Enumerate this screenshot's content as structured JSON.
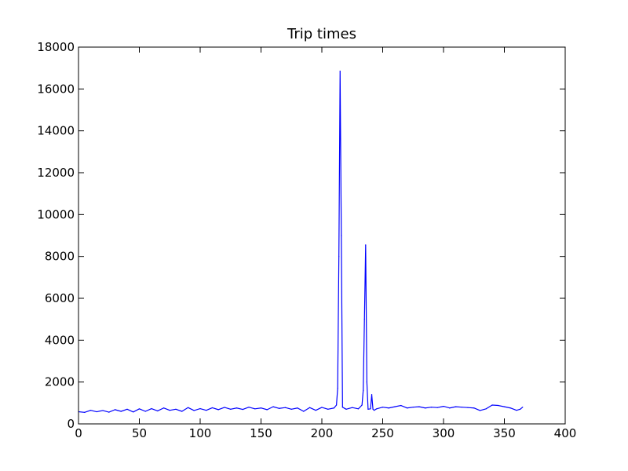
{
  "chart_data": {
    "type": "line",
    "title": "Trip times",
    "xlabel": "",
    "ylabel": "",
    "xlim": [
      0,
      400
    ],
    "ylim": [
      0,
      18000
    ],
    "x_ticks": [
      0,
      50,
      100,
      150,
      200,
      250,
      300,
      350,
      400
    ],
    "y_ticks": [
      0,
      2000,
      4000,
      6000,
      8000,
      10000,
      12000,
      14000,
      16000,
      18000
    ],
    "x_tick_labels": [
      "0",
      "50",
      "100",
      "150",
      "200",
      "250",
      "300",
      "350",
      "400"
    ],
    "y_tick_labels": [
      "0",
      "2000",
      "4000",
      "6000",
      "8000",
      "10000",
      "12000",
      "14000",
      "16000",
      "18000"
    ],
    "grid": false,
    "line_color": "#0000ff",
    "series": [
      {
        "x": [
          0,
          5,
          10,
          15,
          20,
          25,
          30,
          35,
          40,
          45,
          50,
          55,
          60,
          65,
          70,
          75,
          80,
          85,
          90,
          95,
          100,
          105,
          110,
          115,
          120,
          125,
          130,
          135,
          140,
          145,
          150,
          155,
          160,
          165,
          170,
          175,
          180,
          185,
          190,
          195,
          200,
          205,
          210,
          212,
          213,
          214,
          215,
          216,
          217,
          220,
          225,
          230,
          233,
          234,
          235,
          236,
          237,
          238,
          240,
          241,
          242,
          243,
          245,
          250,
          255,
          260,
          265,
          270,
          275,
          280,
          285,
          290,
          295,
          300,
          305,
          310,
          315,
          320,
          325,
          330,
          335,
          340,
          345,
          350,
          355,
          360,
          363,
          365
        ],
        "y": [
          580,
          550,
          650,
          580,
          640,
          560,
          680,
          600,
          700,
          570,
          720,
          600,
          730,
          620,
          760,
          650,
          700,
          600,
          780,
          640,
          730,
          650,
          770,
          680,
          790,
          700,
          760,
          690,
          800,
          720,
          760,
          680,
          820,
          740,
          780,
          700,
          760,
          600,
          780,
          650,
          790,
          700,
          760,
          900,
          1700,
          8000,
          16850,
          9000,
          800,
          700,
          780,
          720,
          900,
          1600,
          5000,
          8550,
          2000,
          700,
          720,
          1400,
          700,
          650,
          720,
          800,
          760,
          820,
          880,
          760,
          800,
          820,
          760,
          800,
          780,
          840,
          760,
          820,
          800,
          780,
          760,
          640,
          720,
          900,
          880,
          820,
          760,
          650,
          700,
          800
        ]
      }
    ]
  }
}
